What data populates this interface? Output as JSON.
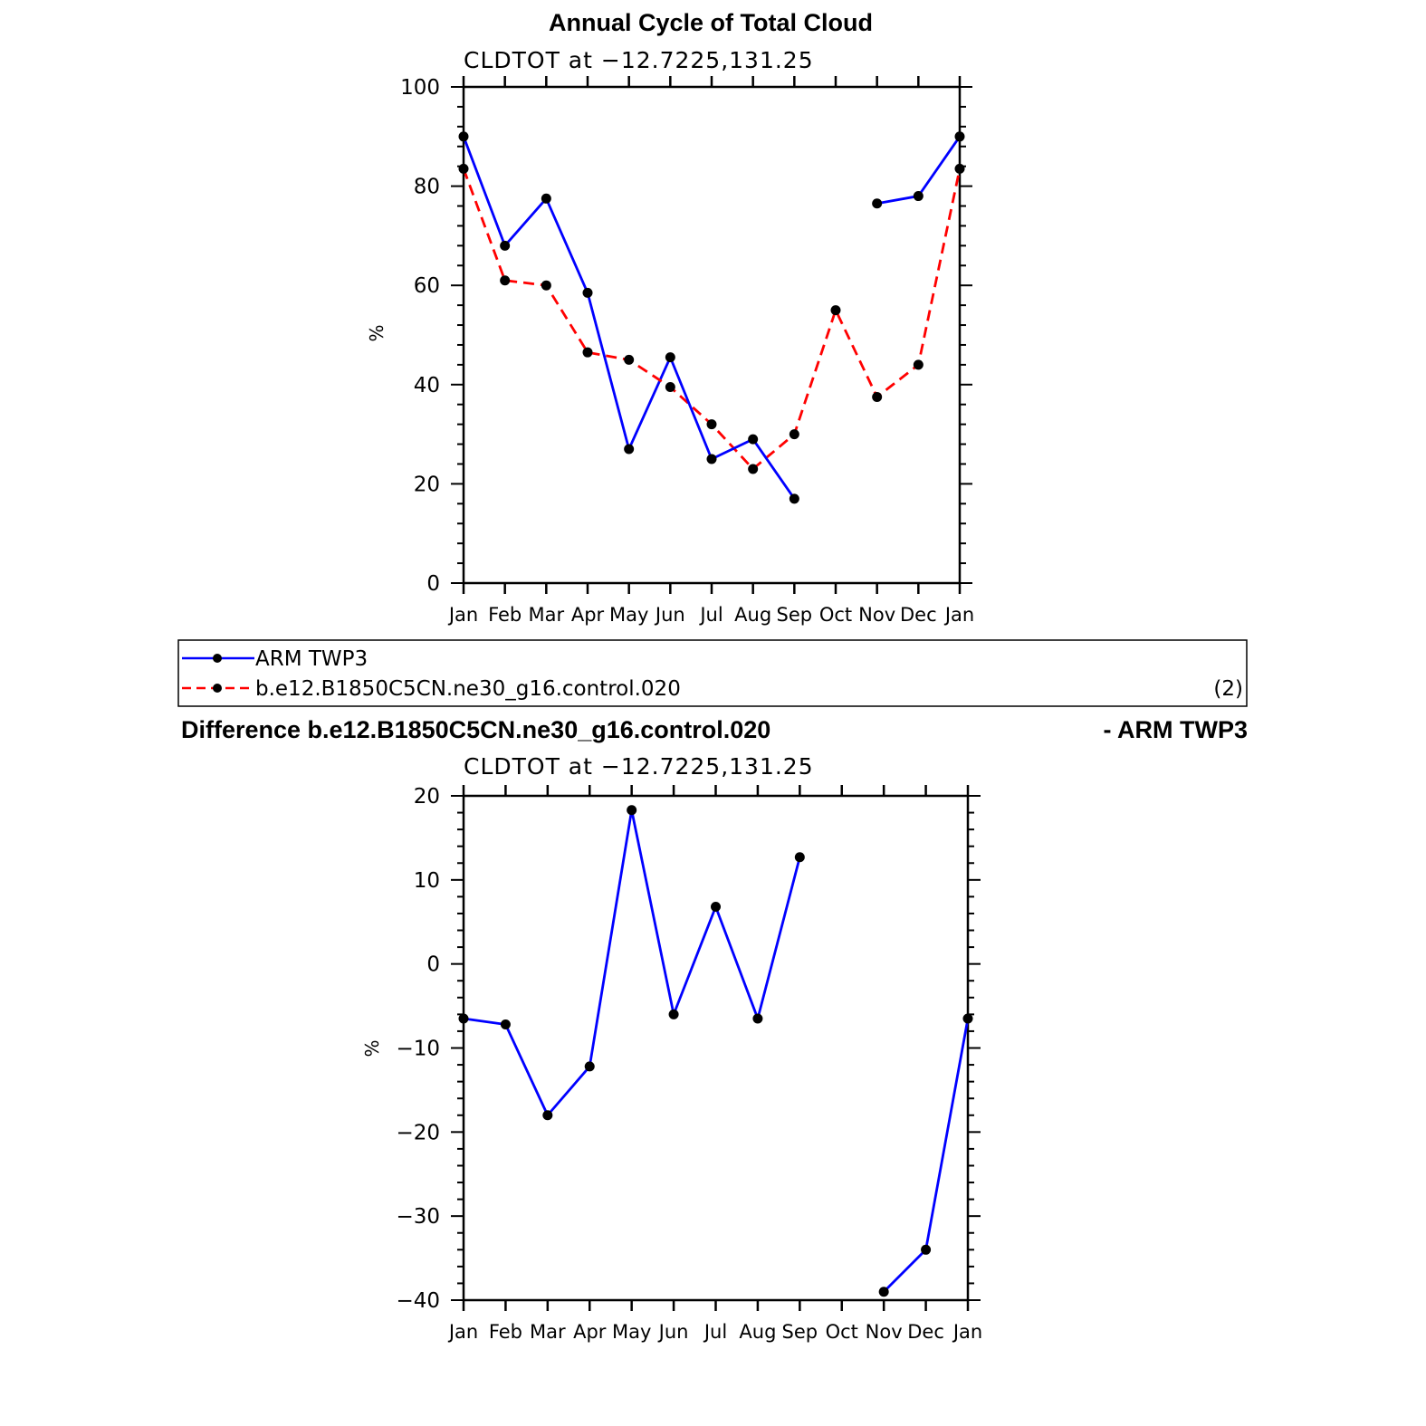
{
  "chart_data": [
    {
      "type": "line",
      "title": "Annual Cycle of Total Cloud",
      "subtitle": "CLDTOT at −12.7225,131.25",
      "ylabel": "%",
      "xlabel": "",
      "ylim": [
        0,
        100
      ],
      "yticks": [
        0,
        20,
        40,
        60,
        80,
        100
      ],
      "categories": [
        "Jan",
        "Feb",
        "Mar",
        "Apr",
        "May",
        "Jun",
        "Jul",
        "Aug",
        "Sep",
        "Oct",
        "Nov",
        "Dec",
        "Jan"
      ],
      "series": [
        {
          "name": "ARM TWP3",
          "color": "#0000ff",
          "style": "solid",
          "values": [
            90,
            68,
            77.5,
            58.5,
            27,
            45.5,
            null,
            null,
            null,
            null,
            76.5,
            78,
            90
          ]
        },
        {
          "name": "b.e12.B1850C5CN.ne30_g16.control.020",
          "color": "#ff0000",
          "style": "dashed",
          "values": [
            83.5,
            61,
            60,
            46.5,
            45,
            39.5,
            32,
            23,
            30,
            55,
            37.5,
            44,
            83.5
          ]
        }
      ],
      "extra_points": {
        "note_series": "ARM TWP3",
        "x_index": [
          6,
          7,
          8
        ],
        "values": [
          25,
          29,
          17
        ]
      },
      "legend_annotation": "(2)",
      "grid": false
    },
    {
      "type": "line",
      "title_left": "Difference b.e12.B1850C5CN.ne30_g16.control.020",
      "title_right": "- ARM TWP3",
      "subtitle": "CLDTOT at −12.7225,131.25",
      "ylabel": "%",
      "xlabel": "",
      "ylim": [
        -40,
        20
      ],
      "yticks": [
        -40,
        -30,
        -20,
        -10,
        0,
        10,
        20
      ],
      "ytick_labels": [
        "−40",
        "−30",
        "−20",
        "−10",
        "0",
        "10",
        "20"
      ],
      "categories": [
        "Jan",
        "Feb",
        "Mar",
        "Apr",
        "May",
        "Jun",
        "Jul",
        "Aug",
        "Sep",
        "Oct",
        "Nov",
        "Dec",
        "Jan"
      ],
      "series": [
        {
          "color": "#0000ff",
          "style": "solid",
          "values": [
            -6.5,
            -7.2,
            -18,
            -12.2,
            18.3,
            -6,
            6.8,
            -6.5,
            12.7,
            null,
            -39,
            -34,
            -6.5
          ]
        }
      ],
      "grid": false
    }
  ]
}
